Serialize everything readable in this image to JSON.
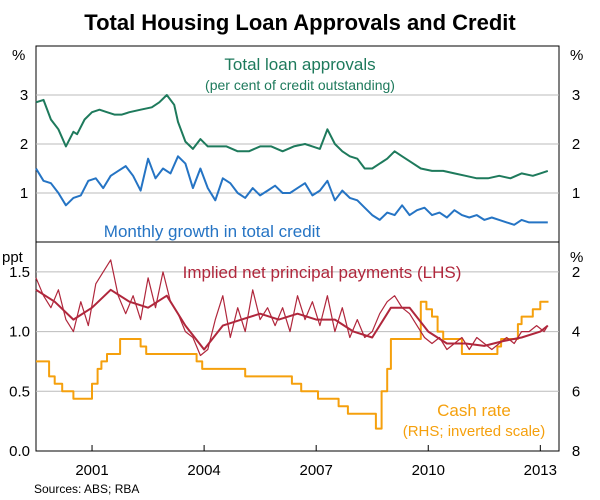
{
  "title": "Total Housing Loan Approvals and Credit",
  "source": "Sources: ABS; RBA",
  "colors": {
    "green": "#1e7a5c",
    "blue": "#2574c4",
    "red": "#b0273c",
    "orange": "#f5a00d",
    "axis": "#000000",
    "grid": "#bbbbbb"
  },
  "chart_data": [
    {
      "type": "line",
      "panel": "top",
      "ylabel_left": "%",
      "ylabel_right": "%",
      "ylim": [
        0,
        4
      ],
      "yticks": [
        1,
        2,
        3
      ],
      "xlim": [
        1999.5,
        2013.5
      ],
      "series": [
        {
          "name": "Total loan approvals",
          "sublabel": "(per cent of credit outstanding)",
          "color": "green",
          "x": [
            1999.5,
            1999.7,
            1999.9,
            2000.1,
            2000.3,
            2000.5,
            2000.6,
            2000.8,
            2001.0,
            2001.2,
            2001.4,
            2001.6,
            2001.8,
            2002.0,
            2002.3,
            2002.6,
            2002.8,
            2003.0,
            2003.2,
            2003.3,
            2003.5,
            2003.7,
            2003.9,
            2004.1,
            2004.3,
            2004.6,
            2004.9,
            2005.2,
            2005.5,
            2005.8,
            2006.1,
            2006.4,
            2006.7,
            2006.9,
            2007.1,
            2007.3,
            2007.5,
            2007.7,
            2007.9,
            2008.1,
            2008.3,
            2008.5,
            2008.7,
            2008.9,
            2009.1,
            2009.3,
            2009.5,
            2009.8,
            2010.1,
            2010.4,
            2010.7,
            2011.0,
            2011.3,
            2011.6,
            2011.9,
            2012.2,
            2012.5,
            2012.8,
            2013.0,
            2013.2
          ],
          "values": [
            2.85,
            2.9,
            2.5,
            2.3,
            1.95,
            2.25,
            2.2,
            2.5,
            2.65,
            2.7,
            2.65,
            2.6,
            2.6,
            2.65,
            2.7,
            2.75,
            2.85,
            3.0,
            2.8,
            2.45,
            2.05,
            1.9,
            2.1,
            1.95,
            1.95,
            1.95,
            1.85,
            1.85,
            1.95,
            1.95,
            1.85,
            1.95,
            2.0,
            1.95,
            1.9,
            2.3,
            2.0,
            1.85,
            1.75,
            1.7,
            1.5,
            1.5,
            1.6,
            1.7,
            1.85,
            1.75,
            1.65,
            1.5,
            1.45,
            1.45,
            1.4,
            1.35,
            1.3,
            1.3,
            1.35,
            1.3,
            1.4,
            1.35,
            1.4,
            1.45
          ]
        },
        {
          "name": "Monthly growth in total credit",
          "color": "blue",
          "x": [
            1999.5,
            1999.7,
            1999.9,
            2000.1,
            2000.3,
            2000.5,
            2000.7,
            2000.9,
            2001.1,
            2001.3,
            2001.5,
            2001.7,
            2001.9,
            2002.1,
            2002.3,
            2002.5,
            2002.7,
            2002.9,
            2003.1,
            2003.3,
            2003.5,
            2003.7,
            2003.9,
            2004.1,
            2004.3,
            2004.5,
            2004.7,
            2004.9,
            2005.1,
            2005.3,
            2005.5,
            2005.7,
            2005.9,
            2006.1,
            2006.3,
            2006.5,
            2006.7,
            2006.9,
            2007.1,
            2007.3,
            2007.5,
            2007.7,
            2007.9,
            2008.1,
            2008.3,
            2008.5,
            2008.7,
            2008.9,
            2009.1,
            2009.3,
            2009.5,
            2009.7,
            2009.9,
            2010.1,
            2010.3,
            2010.5,
            2010.7,
            2010.9,
            2011.1,
            2011.3,
            2011.5,
            2011.7,
            2011.9,
            2012.1,
            2012.3,
            2012.5,
            2012.7,
            2012.9,
            2013.1,
            2013.2
          ],
          "values": [
            1.5,
            1.25,
            1.2,
            1.0,
            0.75,
            0.9,
            0.95,
            1.25,
            1.3,
            1.1,
            1.35,
            1.45,
            1.55,
            1.35,
            1.05,
            1.7,
            1.3,
            1.5,
            1.4,
            1.75,
            1.6,
            1.1,
            1.5,
            1.1,
            0.85,
            1.3,
            1.2,
            1.0,
            0.9,
            1.1,
            0.95,
            1.05,
            1.15,
            1.0,
            1.0,
            1.1,
            1.2,
            0.95,
            1.05,
            1.25,
            0.85,
            1.05,
            0.9,
            0.85,
            0.7,
            0.55,
            0.45,
            0.6,
            0.55,
            0.75,
            0.55,
            0.65,
            0.7,
            0.55,
            0.6,
            0.5,
            0.65,
            0.55,
            0.5,
            0.55,
            0.45,
            0.5,
            0.45,
            0.4,
            0.35,
            0.45,
            0.4,
            0.4,
            0.4,
            0.4
          ]
        }
      ]
    },
    {
      "type": "line",
      "panel": "bottom",
      "ylabel_left": "ppt",
      "ylabel_right": "%",
      "ylim_left": [
        0.0,
        1.75
      ],
      "yticks_left": [
        0.0,
        0.5,
        1.0,
        1.5
      ],
      "ylim_right_inverted": [
        8,
        1
      ],
      "yticks_right": [
        2,
        4,
        6,
        8
      ],
      "xlim": [
        1999.5,
        2013.5
      ],
      "xticks": [
        2001,
        2004,
        2007,
        2010,
        2013
      ],
      "series": [
        {
          "name": "Implied net principal payments (LHS)",
          "color": "red",
          "axis": "left",
          "x": [
            1999.5,
            1999.7,
            1999.9,
            2000.1,
            2000.3,
            2000.5,
            2000.7,
            2000.9,
            2001.1,
            2001.3,
            2001.5,
            2001.7,
            2001.9,
            2002.1,
            2002.3,
            2002.5,
            2002.7,
            2002.9,
            2003.1,
            2003.3,
            2003.5,
            2003.7,
            2003.9,
            2004.1,
            2004.3,
            2004.5,
            2004.7,
            2004.9,
            2005.1,
            2005.3,
            2005.5,
            2005.7,
            2005.9,
            2006.1,
            2006.3,
            2006.5,
            2006.7,
            2006.9,
            2007.1,
            2007.3,
            2007.5,
            2007.7,
            2007.9,
            2008.1,
            2008.3,
            2008.5,
            2008.7,
            2008.9,
            2009.1,
            2009.3,
            2009.5,
            2009.7,
            2009.9,
            2010.1,
            2010.3,
            2010.5,
            2010.7,
            2010.9,
            2011.1,
            2011.3,
            2011.5,
            2011.7,
            2011.9,
            2012.1,
            2012.3,
            2012.5,
            2012.7,
            2012.9,
            2013.1,
            2013.2
          ],
          "values": [
            1.45,
            1.3,
            1.2,
            1.35,
            1.1,
            1.0,
            1.25,
            1.05,
            1.4,
            1.5,
            1.6,
            1.3,
            1.15,
            1.3,
            1.1,
            1.45,
            1.2,
            1.5,
            1.25,
            1.15,
            1.0,
            0.95,
            0.8,
            0.85,
            1.1,
            1.3,
            0.95,
            1.2,
            1.0,
            1.35,
            1.1,
            1.2,
            1.05,
            1.2,
            1.0,
            1.3,
            1.1,
            1.25,
            1.05,
            1.3,
            1.0,
            1.2,
            0.95,
            1.1,
            0.95,
            1.0,
            1.15,
            1.25,
            1.3,
            1.2,
            1.15,
            1.05,
            0.95,
            0.9,
            0.95,
            0.85,
            0.9,
            0.95,
            0.85,
            0.95,
            0.9,
            0.85,
            0.9,
            0.95,
            0.9,
            1.0,
            1.0,
            1.05,
            1.0,
            1.05
          ]
        },
        {
          "name": "Implied net principal payments (LHS) — smoothed",
          "color": "red",
          "axis": "left",
          "x": [
            1999.5,
            2000.0,
            2000.5,
            2001.0,
            2001.5,
            2002.0,
            2002.5,
            2003.0,
            2003.5,
            2004.0,
            2004.5,
            2005.0,
            2005.5,
            2006.0,
            2006.5,
            2007.0,
            2007.5,
            2008.0,
            2008.5,
            2009.0,
            2009.5,
            2010.0,
            2010.5,
            2011.0,
            2011.5,
            2012.0,
            2012.5,
            2013.0,
            2013.2
          ],
          "values": [
            1.35,
            1.25,
            1.1,
            1.2,
            1.35,
            1.25,
            1.2,
            1.3,
            1.05,
            0.85,
            1.05,
            1.1,
            1.15,
            1.1,
            1.15,
            1.1,
            1.1,
            1.0,
            0.95,
            1.2,
            1.2,
            1.0,
            0.9,
            0.9,
            0.88,
            0.92,
            0.95,
            1.0,
            1.05
          ]
        },
        {
          "name": "Cash rate",
          "sublabel": "(RHS; inverted scale)",
          "color": "orange",
          "axis": "right",
          "step": true,
          "x": [
            1999.5,
            1999.85,
            2000.0,
            2000.2,
            2000.5,
            2000.65,
            2001.0,
            2001.15,
            2001.25,
            2001.4,
            2001.75,
            2002.3,
            2002.45,
            2003.8,
            2003.95,
            2005.1,
            2006.35,
            2006.6,
            2007.05,
            2007.6,
            2007.85,
            2008.6,
            2008.75,
            2008.9,
            2009.0,
            2009.8,
            2009.95,
            2010.1,
            2010.25,
            2010.4,
            2010.9,
            2011.85,
            2011.95,
            2012.4,
            2012.5,
            2012.8,
            2013.0,
            2013.2
          ],
          "values": [
            5.0,
            5.5,
            5.75,
            6.0,
            6.25,
            6.25,
            5.75,
            5.25,
            5.0,
            4.75,
            4.25,
            4.5,
            4.75,
            5.0,
            5.25,
            5.5,
            5.75,
            6.0,
            6.25,
            6.5,
            6.75,
            7.25,
            6.0,
            5.25,
            4.25,
            3.0,
            3.25,
            3.5,
            4.0,
            4.25,
            4.75,
            4.5,
            4.25,
            3.75,
            3.5,
            3.25,
            3.0,
            3.0
          ]
        }
      ]
    }
  ],
  "labels": {
    "approvals_line1": "Total loan approvals",
    "approvals_line2": "(per cent of credit outstanding)",
    "credit": "Monthly growth in total credit",
    "principal": "Implied net principal payments (LHS)",
    "cash_line1": "Cash rate",
    "cash_line2": "(RHS; inverted scale)"
  }
}
